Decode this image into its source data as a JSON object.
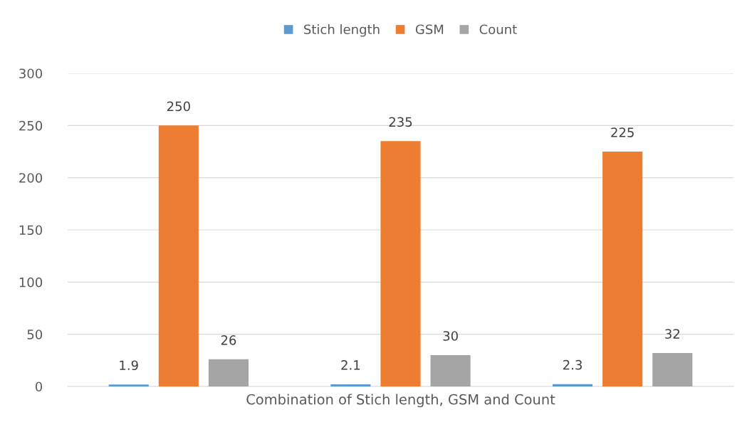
{
  "chart_data": {
    "type": "bar",
    "xlabel": "Combination of Stich length, GSM and Count",
    "categories": [
      null,
      null,
      null
    ],
    "series": [
      {
        "name": "Stich length",
        "color": "#5b9bd5",
        "values": [
          1.9,
          2.1,
          2.3
        ]
      },
      {
        "name": "GSM",
        "color": "#ed7d31",
        "values": [
          250,
          235,
          225
        ]
      },
      {
        "name": "Count",
        "color": "#a5a5a5",
        "values": [
          26,
          30,
          32
        ]
      }
    ],
    "ylim": [
      0,
      300
    ],
    "yticks": [
      0,
      50,
      100,
      150,
      200,
      250,
      300
    ],
    "grid": "y",
    "legend": "top",
    "data_labels": true
  }
}
